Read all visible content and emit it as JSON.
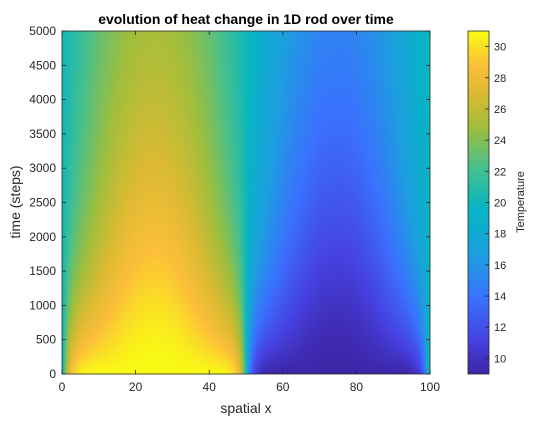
{
  "chart_data": {
    "type": "heatmap",
    "title": "evolution of heat change in 1D rod over time",
    "xlabel": "spatial x",
    "ylabel": "time (steps)",
    "xlim": [
      0,
      100
    ],
    "ylim": [
      0,
      5000
    ],
    "x_ticks": [
      0,
      20,
      40,
      60,
      80,
      100
    ],
    "y_ticks": [
      0,
      500,
      1000,
      1500,
      2000,
      2500,
      3000,
      3500,
      4000,
      4500,
      5000
    ],
    "colorbar": {
      "label": "Temperature",
      "range": [
        9,
        31
      ],
      "ticks": [
        10,
        12,
        14,
        16,
        18,
        20,
        22,
        24,
        26,
        28,
        30
      ],
      "colormap": "parula"
    },
    "boundary_temperature": 20,
    "initial_profile": [
      {
        "x_range": [
          0,
          50
        ],
        "peak_x": 25,
        "peak_value": 31
      },
      {
        "x_range": [
          50,
          100
        ],
        "peak_x": 75,
        "peak_value": 9
      }
    ],
    "final_profile": [
      {
        "x": 0,
        "value": 20
      },
      {
        "x": 25,
        "value": 25.5
      },
      {
        "x": 50,
        "value": 20
      },
      {
        "x": 75,
        "value": 14
      },
      {
        "x": 100,
        "value": 20
      }
    ],
    "grid": false,
    "legend": "colorbar-right"
  }
}
